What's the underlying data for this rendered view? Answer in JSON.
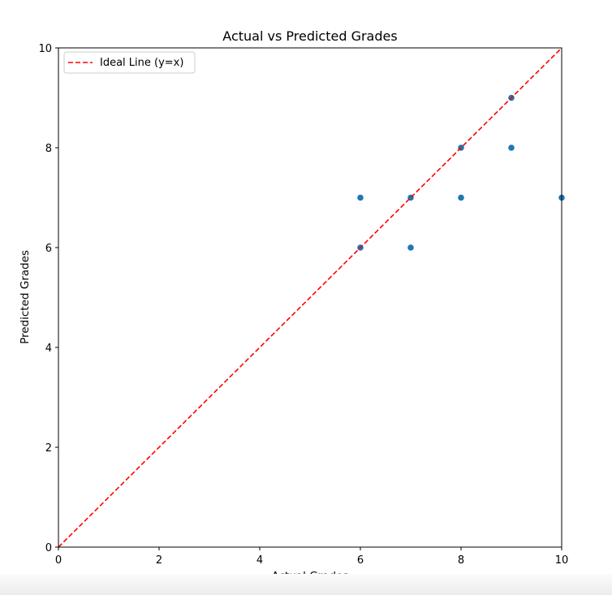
{
  "chart_data": {
    "type": "scatter",
    "title": "Actual vs Predicted Grades",
    "xlabel": "Actual Grades",
    "ylabel": "Predicted Grades",
    "xlim": [
      0,
      10
    ],
    "ylim": [
      0,
      10
    ],
    "xticks": [
      "0",
      "2",
      "4",
      "6",
      "8",
      "10"
    ],
    "yticks": [
      "0",
      "2",
      "4",
      "6",
      "8",
      "10"
    ],
    "grid": false,
    "legend_position": "top-left",
    "series": [
      {
        "type": "scatter",
        "color": "#1f77b4",
        "points": [
          {
            "x": 6,
            "y": 7
          },
          {
            "x": 6,
            "y": 6
          },
          {
            "x": 7,
            "y": 7
          },
          {
            "x": 7,
            "y": 6
          },
          {
            "x": 8,
            "y": 8
          },
          {
            "x": 8,
            "y": 7
          },
          {
            "x": 9,
            "y": 9
          },
          {
            "x": 9,
            "y": 8
          },
          {
            "x": 10,
            "y": 7
          }
        ]
      },
      {
        "type": "line",
        "name": "Ideal Line (y=x)",
        "color": "#ff0000",
        "style": "dashed",
        "points": [
          {
            "x": 0,
            "y": 0
          },
          {
            "x": 10,
            "y": 10
          }
        ]
      }
    ]
  }
}
